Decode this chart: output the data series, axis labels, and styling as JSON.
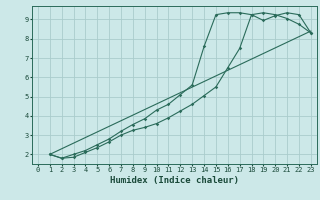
{
  "xlabel": "Humidex (Indice chaleur)",
  "bg_color": "#cce8e8",
  "grid_color": "#aacccc",
  "line_color": "#2a6b5a",
  "xlim_min": -0.5,
  "xlim_max": 23.5,
  "ylim_min": 1.5,
  "ylim_max": 9.7,
  "xticks": [
    0,
    1,
    2,
    3,
    4,
    5,
    6,
    7,
    8,
    9,
    10,
    11,
    12,
    13,
    14,
    15,
    16,
    17,
    18,
    19,
    20,
    21,
    22,
    23
  ],
  "yticks": [
    2,
    3,
    4,
    5,
    6,
    7,
    8,
    9
  ],
  "line1_x": [
    1,
    2,
    3,
    4,
    5,
    6,
    7,
    8,
    9,
    10,
    11,
    12,
    13,
    14,
    15,
    16,
    17,
    18,
    19,
    20,
    21,
    22,
    23
  ],
  "line1_y": [
    2.0,
    1.8,
    1.85,
    2.1,
    2.35,
    2.65,
    3.0,
    3.25,
    3.4,
    3.6,
    3.9,
    4.25,
    4.6,
    5.05,
    5.5,
    6.5,
    7.5,
    9.25,
    9.35,
    9.25,
    9.05,
    8.75,
    8.3
  ],
  "line2_x": [
    1,
    2,
    3,
    4,
    5,
    6,
    7,
    8,
    9,
    10,
    11,
    12,
    13,
    14,
    15,
    16,
    17,
    18,
    19,
    20,
    21,
    22,
    23
  ],
  "line2_y": [
    2.0,
    1.8,
    2.0,
    2.2,
    2.5,
    2.8,
    3.2,
    3.55,
    3.85,
    4.3,
    4.6,
    5.1,
    5.6,
    7.6,
    9.25,
    9.35,
    9.35,
    9.25,
    8.95,
    9.2,
    9.35,
    9.25,
    8.3
  ],
  "line3_x": [
    1,
    23
  ],
  "line3_y": [
    2.0,
    8.4
  ]
}
